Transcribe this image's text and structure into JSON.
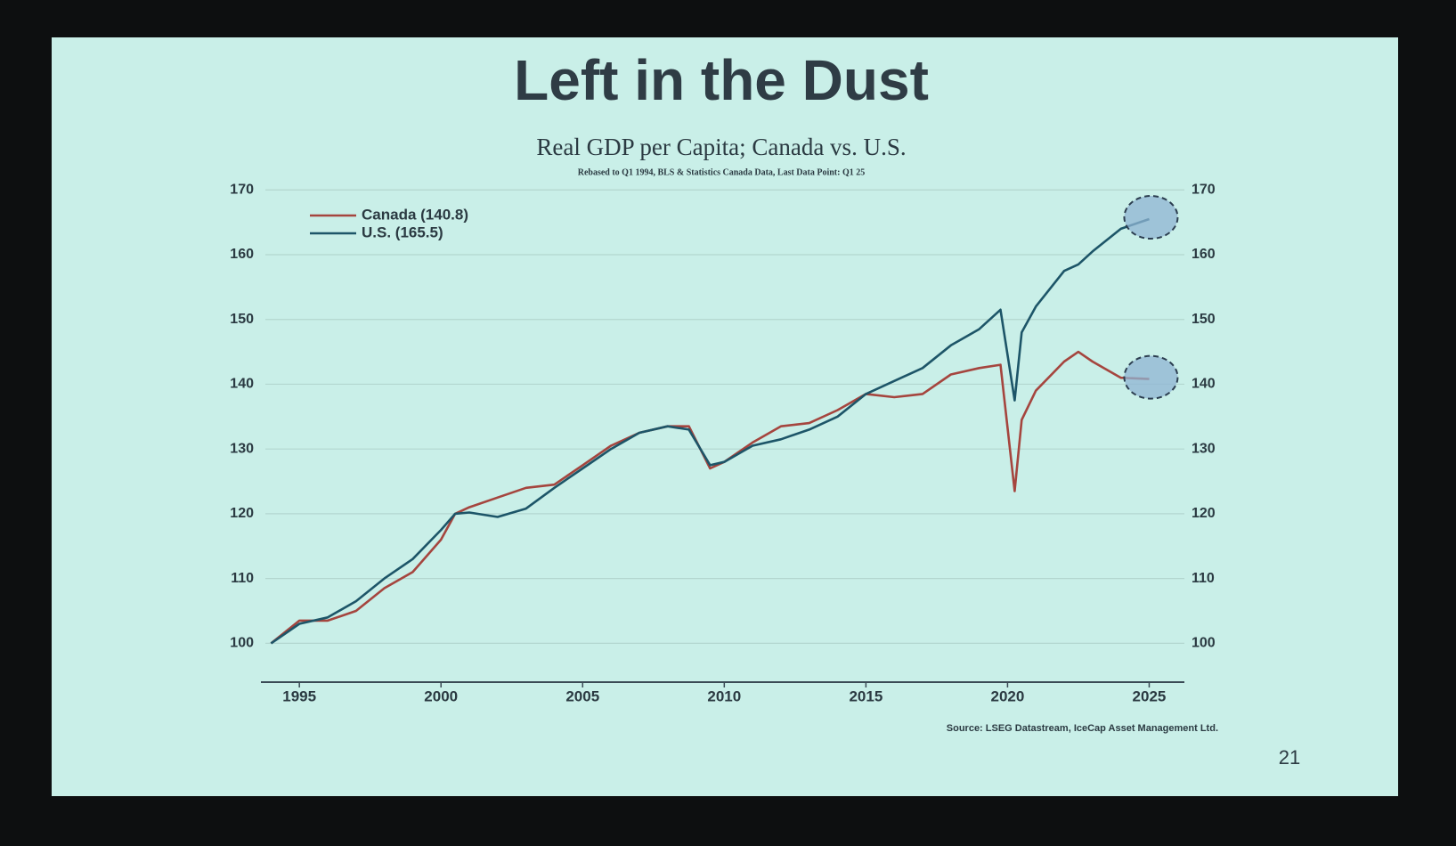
{
  "chart_data": {
    "type": "line",
    "title": "Left in the Dust",
    "subtitle": "Real GDP per Capita; Canada vs. U.S.",
    "note": "Rebased to Q1 1994, BLS & Statistics Canada Data, Last Data Point: Q1 25",
    "source": "Source: LSEG Datastream, IceCap Asset Management Ltd.",
    "page_number": "21",
    "x": [
      1994,
      1995,
      1996,
      1997,
      1998,
      1999,
      2000,
      2000.5,
      2001,
      2002,
      2003,
      2004,
      2005,
      2006,
      2007,
      2008,
      2008.75,
      2009.5,
      2010,
      2011,
      2012,
      2013,
      2014,
      2015,
      2016,
      2017,
      2018,
      2019,
      2019.75,
      2020.25,
      2020.5,
      2021,
      2022,
      2022.5,
      2023,
      2024,
      2025
    ],
    "series": [
      {
        "name": "Canada (140.8)",
        "color": "#a5453e",
        "values": [
          100,
          103.5,
          103.5,
          105,
          108.5,
          111,
          116,
          120,
          121,
          122.5,
          124,
          124.5,
          127.5,
          130.5,
          132.5,
          133.5,
          133.5,
          127,
          128,
          131,
          133.5,
          134,
          136,
          138.5,
          138,
          138.5,
          141.5,
          142.5,
          143,
          123.5,
          134.5,
          139,
          143.5,
          145,
          143.5,
          141,
          140.8
        ]
      },
      {
        "name": "U.S. (165.5)",
        "color": "#1d5568",
        "values": [
          100,
          103,
          104,
          106.5,
          110,
          113,
          117.5,
          120,
          120.2,
          119.5,
          120.8,
          124,
          127,
          130,
          132.5,
          133.5,
          133,
          127.5,
          128,
          130.5,
          131.5,
          133,
          135,
          138.5,
          140.5,
          142.5,
          146,
          148.5,
          151.5,
          137.5,
          148,
          152,
          157.5,
          158.5,
          160.5,
          164,
          165.5
        ]
      }
    ],
    "xlim": [
      1993.8,
      2026.4
    ],
    "xticks": [
      1995,
      2000,
      2005,
      2010,
      2015,
      2020,
      2025
    ],
    "ylim": [
      94,
      171
    ],
    "yticks": [
      100,
      110,
      120,
      130,
      140,
      150,
      160,
      170
    ],
    "y2lim": [
      94,
      171
    ],
    "y2ticks": [
      100,
      110,
      120,
      130,
      140,
      150,
      160,
      170
    ],
    "grid": true,
    "legend": "upper left"
  }
}
